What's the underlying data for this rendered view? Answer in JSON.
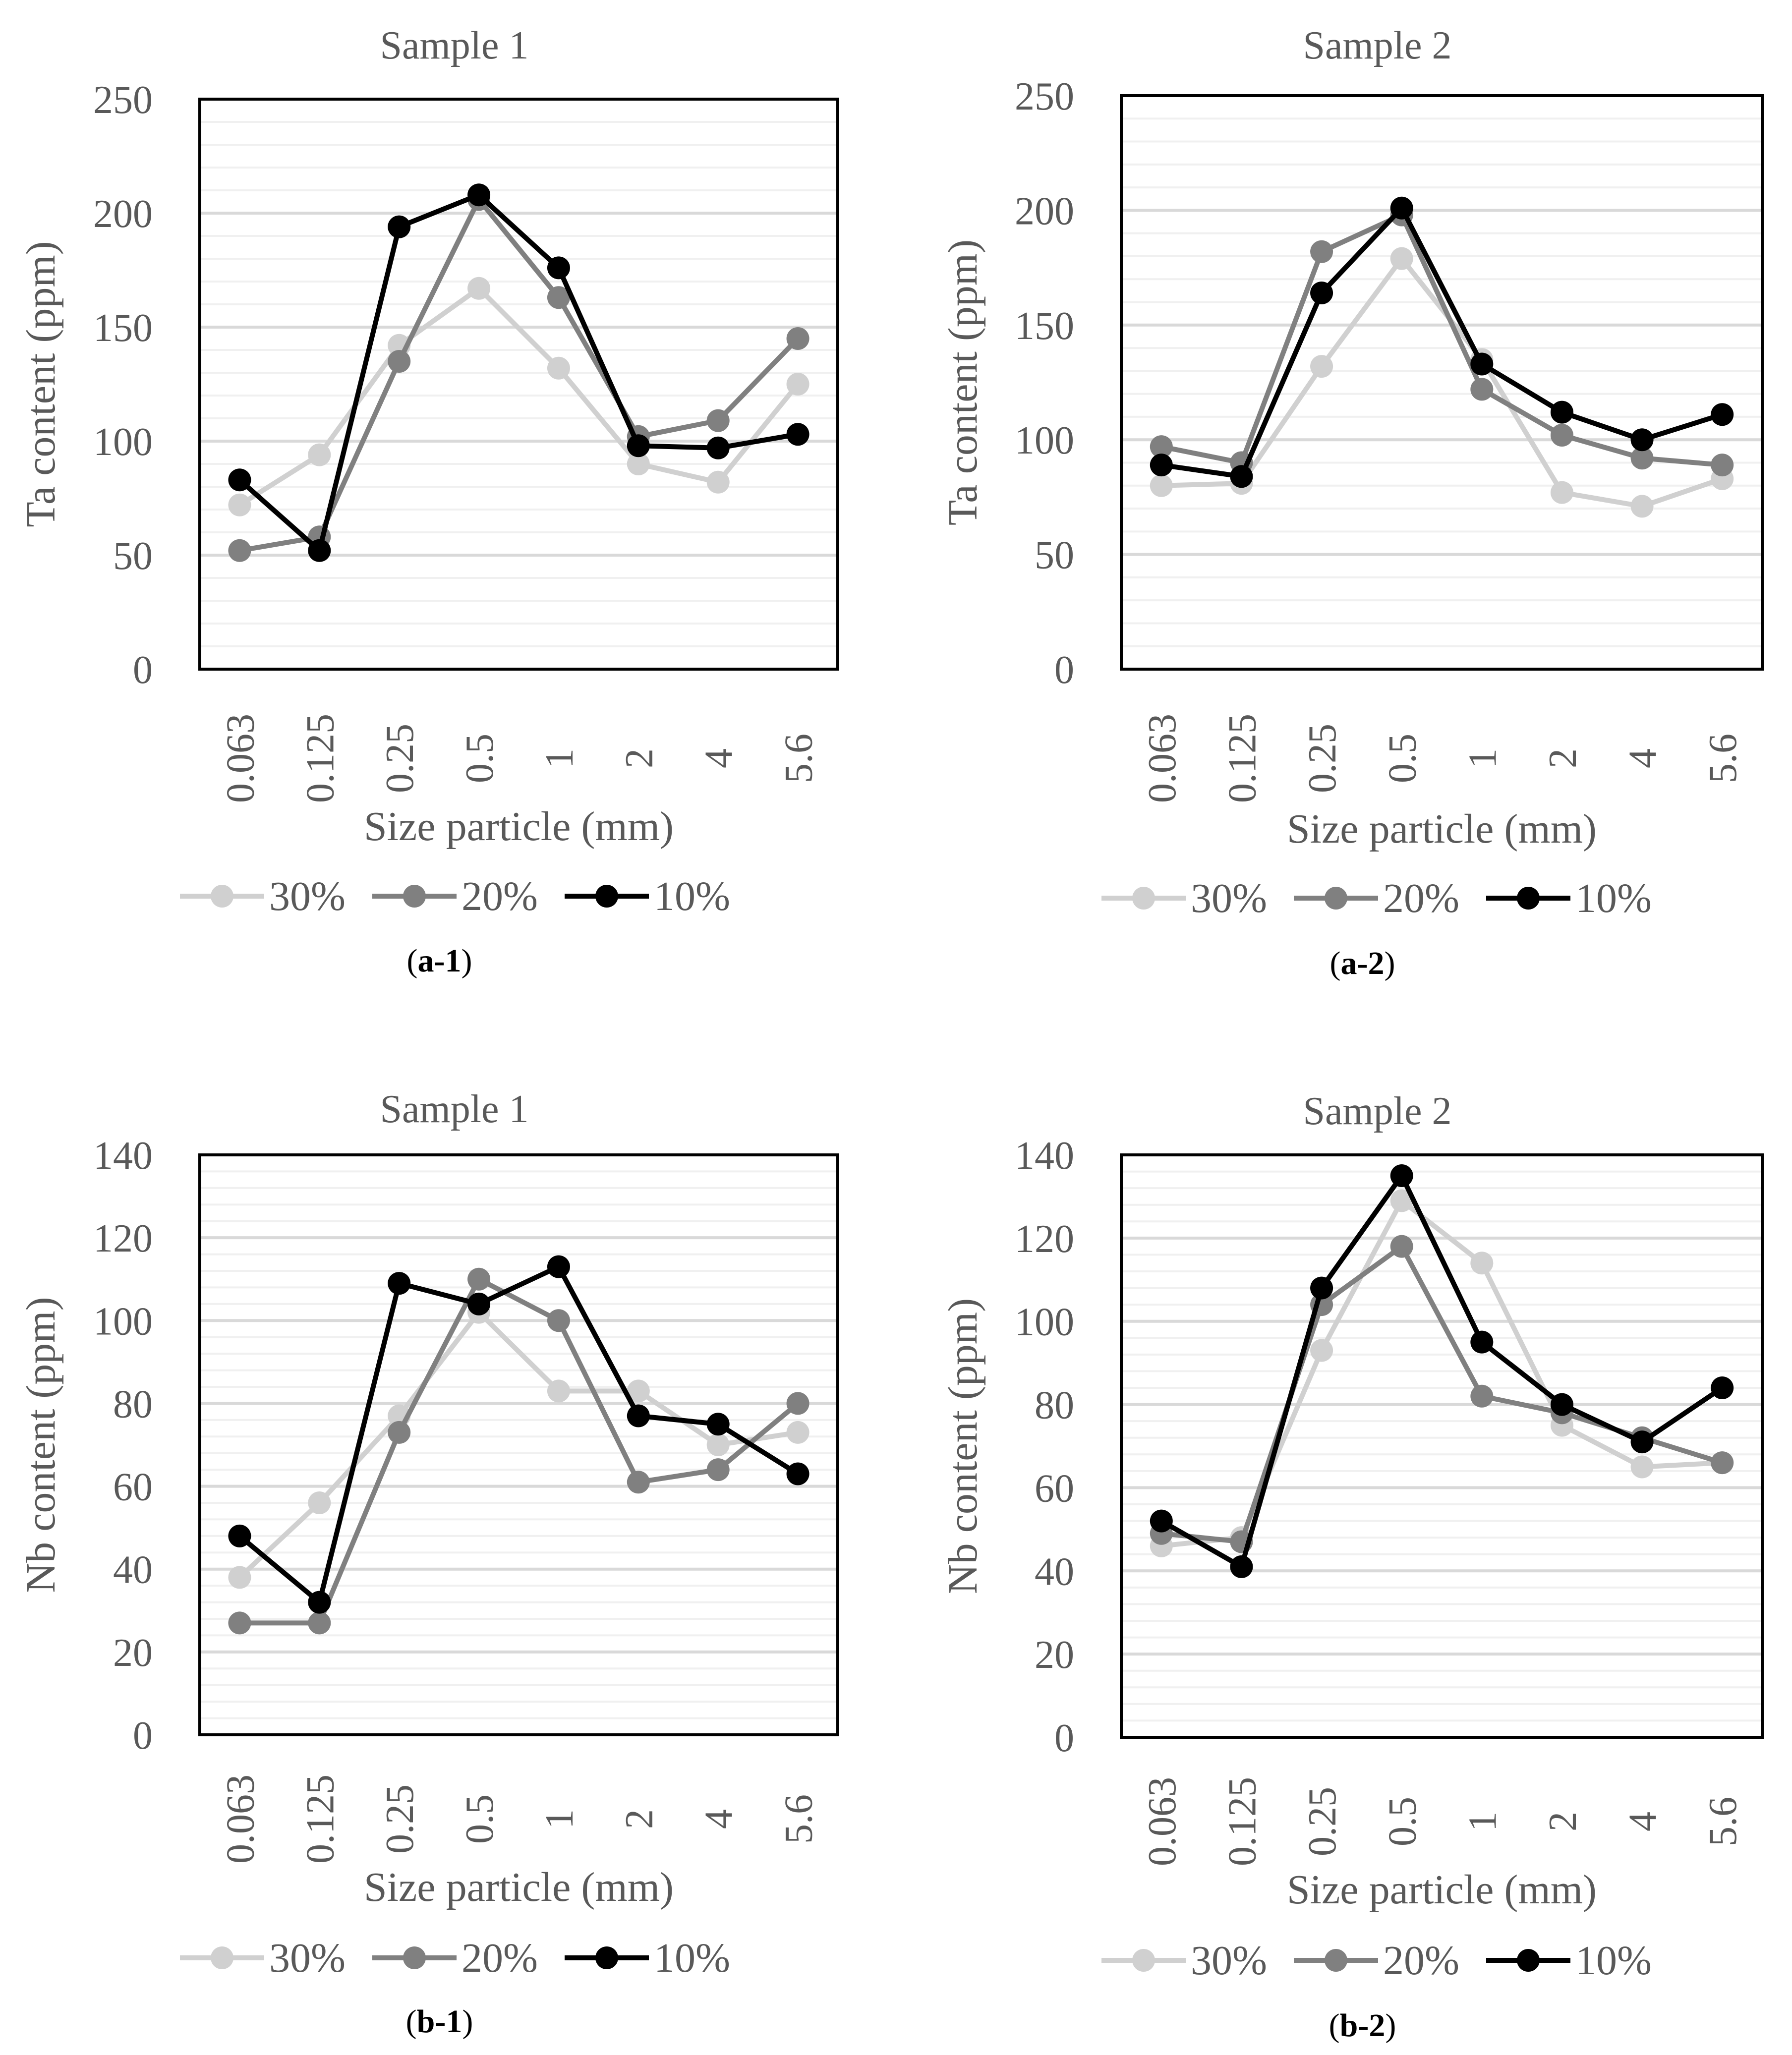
{
  "colors": {
    "series_30": "#d0d0d0",
    "series_20": "#808080",
    "series_10": "#000000",
    "grid_major": "#d9d9d9",
    "grid_minor": "#f0f0f0",
    "text": "#595959"
  },
  "chart_data": [
    {
      "id": "a-1",
      "type": "line",
      "title": "Sample 1",
      "xlabel": "Size particle (mm)",
      "ylabel": "Ta content (ppm)",
      "categories": [
        "0.063",
        "0.125",
        "0.25",
        "0.5",
        "1",
        "2",
        "4",
        "5.6"
      ],
      "ylim": [
        0,
        250
      ],
      "yticks": [
        0,
        50,
        100,
        150,
        200,
        250
      ],
      "grid": true,
      "legend_position": "bottom",
      "caption_open": "(",
      "caption_bold": "a-1",
      "caption_close": ")",
      "series": [
        {
          "name": "30%",
          "values": [
            72,
            94,
            142,
            167,
            132,
            90,
            82,
            125
          ]
        },
        {
          "name": "20%",
          "values": [
            52,
            58,
            135,
            206,
            163,
            102,
            109,
            145
          ]
        },
        {
          "name": "10%",
          "values": [
            83,
            52,
            194,
            208,
            176,
            98,
            97,
            103
          ]
        }
      ]
    },
    {
      "id": "a-2",
      "type": "line",
      "title": "Sample 2",
      "xlabel": "Size particle (mm)",
      "ylabel": "Ta content (ppm)",
      "categories": [
        "0.063",
        "0.125",
        "0.25",
        "0.5",
        "1",
        "2",
        "4",
        "5.6"
      ],
      "ylim": [
        0,
        250
      ],
      "yticks": [
        0,
        50,
        100,
        150,
        200,
        250
      ],
      "grid": true,
      "legend_position": "bottom",
      "caption_open": "(",
      "caption_bold": "a-2",
      "caption_close": ")",
      "series": [
        {
          "name": "30%",
          "values": [
            80,
            81,
            132,
            179,
            135,
            77,
            71,
            83
          ]
        },
        {
          "name": "20%",
          "values": [
            97,
            90,
            182,
            198,
            122,
            102,
            92,
            89
          ]
        },
        {
          "name": "10%",
          "values": [
            89,
            84,
            164,
            201,
            133,
            112,
            100,
            111
          ]
        }
      ]
    },
    {
      "id": "b-1",
      "type": "line",
      "title": "Sample 1",
      "xlabel": "Size particle (mm)",
      "ylabel": "Nb content (ppm)",
      "categories": [
        "0.063",
        "0.125",
        "0.25",
        "0.5",
        "1",
        "2",
        "4",
        "5.6"
      ],
      "ylim": [
        0,
        140
      ],
      "yticks": [
        0,
        20,
        40,
        60,
        80,
        100,
        120,
        140
      ],
      "grid": true,
      "legend_position": "bottom",
      "caption_open": "(",
      "caption_bold": "b-1",
      "caption_close": ")",
      "series": [
        {
          "name": "30%",
          "values": [
            38,
            56,
            77,
            102,
            83,
            83,
            70,
            73
          ]
        },
        {
          "name": "20%",
          "values": [
            27,
            27,
            73,
            110,
            100,
            61,
            64,
            80
          ]
        },
        {
          "name": "10%",
          "values": [
            48,
            32,
            109,
            104,
            113,
            77,
            75,
            63
          ]
        }
      ]
    },
    {
      "id": "b-2",
      "type": "line",
      "title": "Sample 2",
      "xlabel": "Size particle (mm)",
      "ylabel": "Nb content (ppm)",
      "categories": [
        "0.063",
        "0.125",
        "0.25",
        "0.5",
        "1",
        "2",
        "4",
        "5.6"
      ],
      "ylim": [
        0,
        140
      ],
      "yticks": [
        0,
        20,
        40,
        60,
        80,
        100,
        120,
        140
      ],
      "grid": true,
      "legend_position": "bottom",
      "caption_open": "(",
      "caption_bold": "b-2",
      "caption_close": ")",
      "series": [
        {
          "name": "30%",
          "values": [
            46,
            48,
            93,
            129,
            114,
            75,
            65,
            66
          ]
        },
        {
          "name": "20%",
          "values": [
            49,
            47,
            104,
            118,
            82,
            78,
            72,
            66
          ]
        },
        {
          "name": "10%",
          "values": [
            52,
            41,
            108,
            135,
            95,
            80,
            71,
            84
          ]
        }
      ]
    }
  ]
}
